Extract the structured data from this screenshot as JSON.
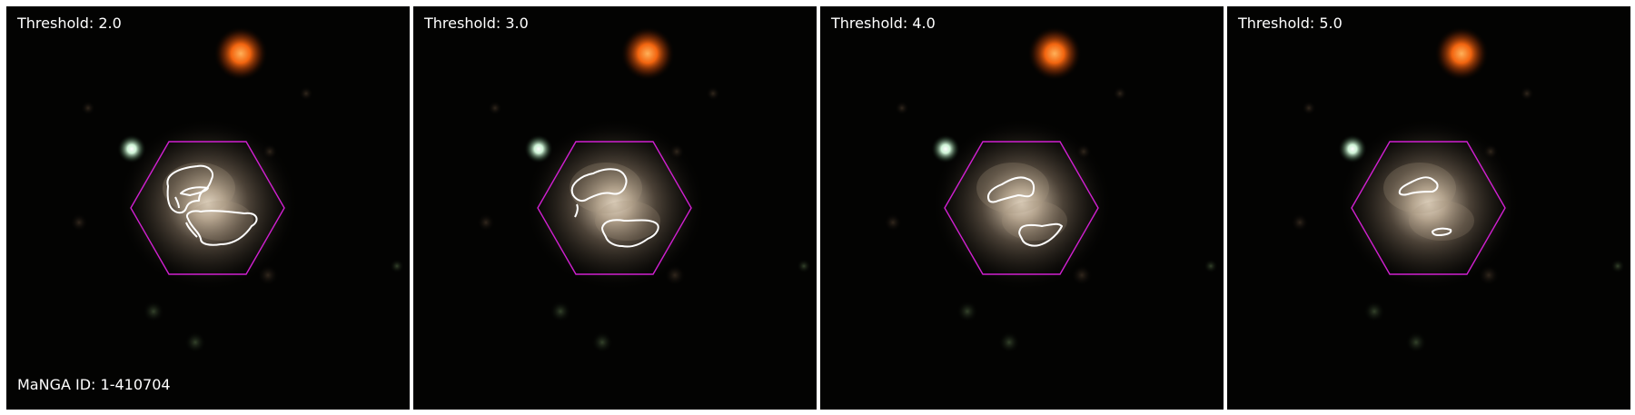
{
  "panels": [
    {
      "threshold_label": "Threshold: 2.0"
    },
    {
      "threshold_label": "Threshold: 3.0"
    },
    {
      "threshold_label": "Threshold: 4.0"
    },
    {
      "threshold_label": "Threshold: 5.0"
    }
  ],
  "galaxy": {
    "manga_id_label": "MaNGA ID: 1-410704"
  },
  "colors": {
    "background": "#000000",
    "hexagon": "#d020d0",
    "contour": "#ffffff",
    "orange_star": "#ff7a1e",
    "blue_star": "#e8fff0",
    "galaxy_core": "#e9dcc8"
  },
  "icons": [
    "ifu-hexagon",
    "contour-outline",
    "galaxy",
    "star"
  ]
}
